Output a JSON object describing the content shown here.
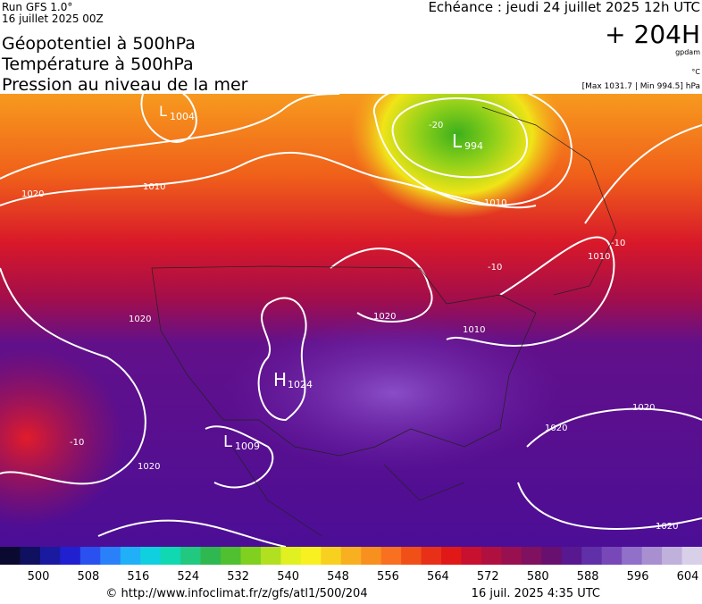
{
  "header": {
    "run": "Run GFS 1.0°",
    "run_date": "16 juillet 2025 00Z",
    "titles": [
      "Géopotentiel à 500hPa",
      "Température à 500hPa",
      "Pression au niveau de la mer"
    ],
    "valid": "Echéance : jeudi 24 juillet 2025 12h UTC",
    "lead": "+ 204H",
    "unit_geo": "gpdam",
    "unit_temp": "°C",
    "extremes": "[Max 1031.7 | Min 994.5] hPa"
  },
  "map": {
    "labels": [
      "L",
      "1004",
      "L",
      "994",
      "-20",
      "1010",
      "1020",
      "1010",
      "1010",
      "-10",
      "1020",
      "1010",
      "H",
      "1024",
      "L",
      "1009",
      "1020",
      "-10",
      "1020",
      "1020",
      "1020",
      "1020",
      "-10"
    ]
  },
  "colorbar": {
    "labels": [
      "500",
      "508",
      "516",
      "524",
      "532",
      "540",
      "548",
      "556",
      "564",
      "572",
      "580",
      "588",
      "596",
      "604"
    ]
  },
  "footer": {
    "source": "© http://www.infoclimat.fr/z/gfs/atl1/500/204",
    "generated": "16 juil. 2025  4:35 UTC"
  }
}
